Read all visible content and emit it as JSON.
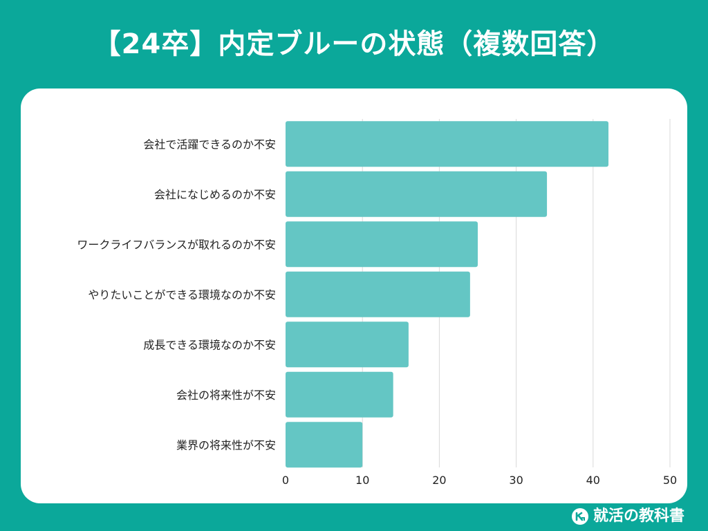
{
  "title": "【24卒】内定ブルーの状態（複数回答）",
  "brand": {
    "name": "就活の教科書"
  },
  "colors": {
    "background": "#0ba89a",
    "bar": "#64c6c4",
    "grid": "#d9d9d9",
    "text": "#222222"
  },
  "chart_data": {
    "type": "bar",
    "orientation": "horizontal",
    "categories": [
      "会社で活躍できるのか不安",
      "会社になじめるのか不安",
      "ワークライフバランスが取れるのか不安",
      "やりたいことができる環境なのか不安",
      "成長できる環境なのか不安",
      "会社の将来性が不安",
      "業界の将来性が不安"
    ],
    "values": [
      42,
      34,
      25,
      24,
      16,
      14,
      10
    ],
    "xlim": [
      0,
      50
    ],
    "xticks": [
      "0",
      "10",
      "20",
      "30",
      "40",
      "50"
    ],
    "grid": "vertical"
  }
}
